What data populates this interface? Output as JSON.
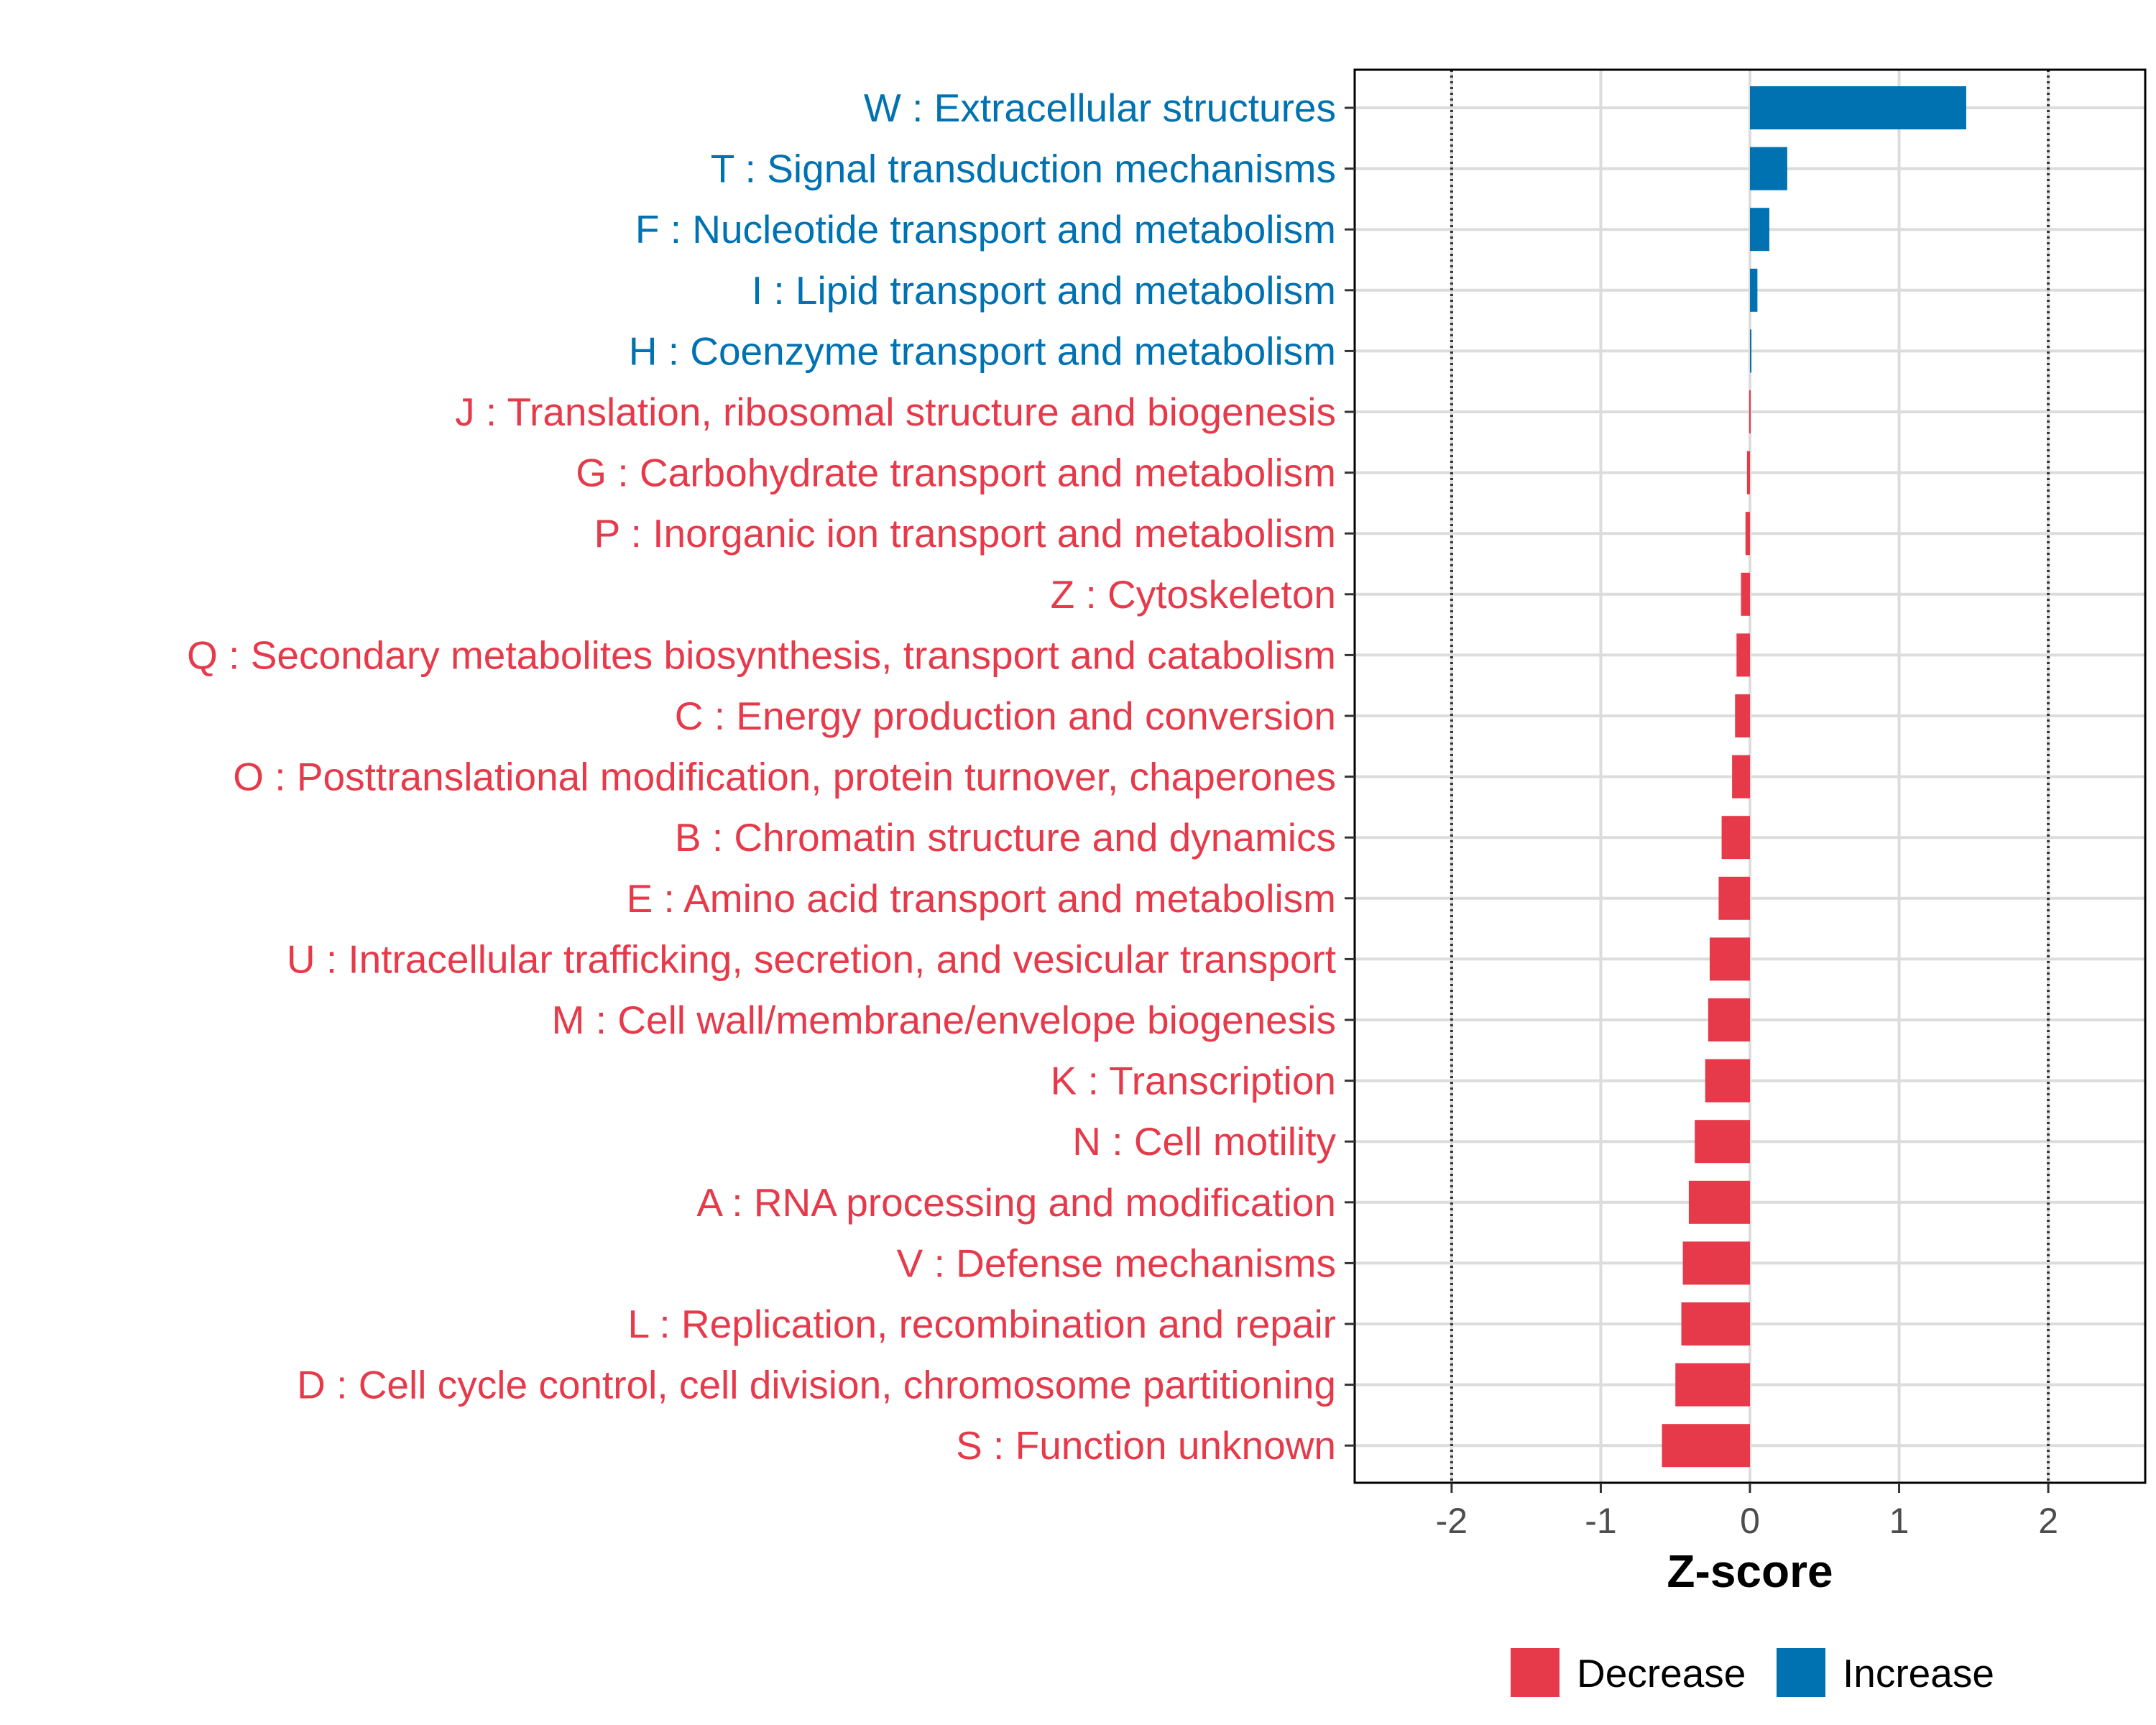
{
  "chart_data": {
    "type": "bar",
    "orientation": "horizontal",
    "title": "",
    "xlabel": "Z-score",
    "ylabel": "",
    "xlim": [
      -2.65,
      2.65
    ],
    "x_ticks": [
      -2,
      -1,
      0,
      1,
      2
    ],
    "x_tick_labels": [
      "-2",
      "-1",
      "0",
      "1",
      "2"
    ],
    "threshold_lines": [
      -2,
      2
    ],
    "grid": true,
    "colors": {
      "Increase": "#0072B2",
      "Decrease": "#E63A4B"
    },
    "legend": {
      "placement": "bottom",
      "entries": [
        "Decrease",
        "Increase"
      ]
    },
    "categories": [
      "W : Extracellular structures",
      "T : Signal transduction mechanisms",
      "F : Nucleotide transport and metabolism",
      "I : Lipid transport and metabolism",
      "H : Coenzyme transport and metabolism",
      "J : Translation, ribosomal structure and biogenesis",
      "G : Carbohydrate transport and metabolism",
      "P : Inorganic ion transport and metabolism",
      "Z : Cytoskeleton",
      "Q : Secondary metabolites biosynthesis, transport and catabolism",
      "C : Energy production and conversion",
      "O : Posttranslational modification, protein turnover, chaperones",
      "B : Chromatin structure and dynamics",
      "E : Amino acid transport and metabolism",
      "U : Intracellular trafficking, secretion, and vesicular transport",
      "M : Cell wall/membrane/envelope biogenesis",
      "K : Transcription",
      "N : Cell motility",
      "A : RNA processing and modification",
      "V : Defense mechanisms",
      "L : Replication, recombination and repair",
      "D : Cell cycle control, cell division, chromosome partitioning",
      "S : Function unknown"
    ],
    "values": [
      1.45,
      0.25,
      0.13,
      0.05,
      0.01,
      -0.005,
      -0.02,
      -0.03,
      -0.06,
      -0.09,
      -0.1,
      -0.12,
      -0.19,
      -0.21,
      -0.27,
      -0.28,
      -0.3,
      -0.37,
      -0.41,
      -0.45,
      -0.46,
      -0.5,
      -0.59
    ],
    "groups": [
      "Increase",
      "Increase",
      "Increase",
      "Increase",
      "Increase",
      "Decrease",
      "Decrease",
      "Decrease",
      "Decrease",
      "Decrease",
      "Decrease",
      "Decrease",
      "Decrease",
      "Decrease",
      "Decrease",
      "Decrease",
      "Decrease",
      "Decrease",
      "Decrease",
      "Decrease",
      "Decrease",
      "Decrease",
      "Decrease"
    ]
  }
}
